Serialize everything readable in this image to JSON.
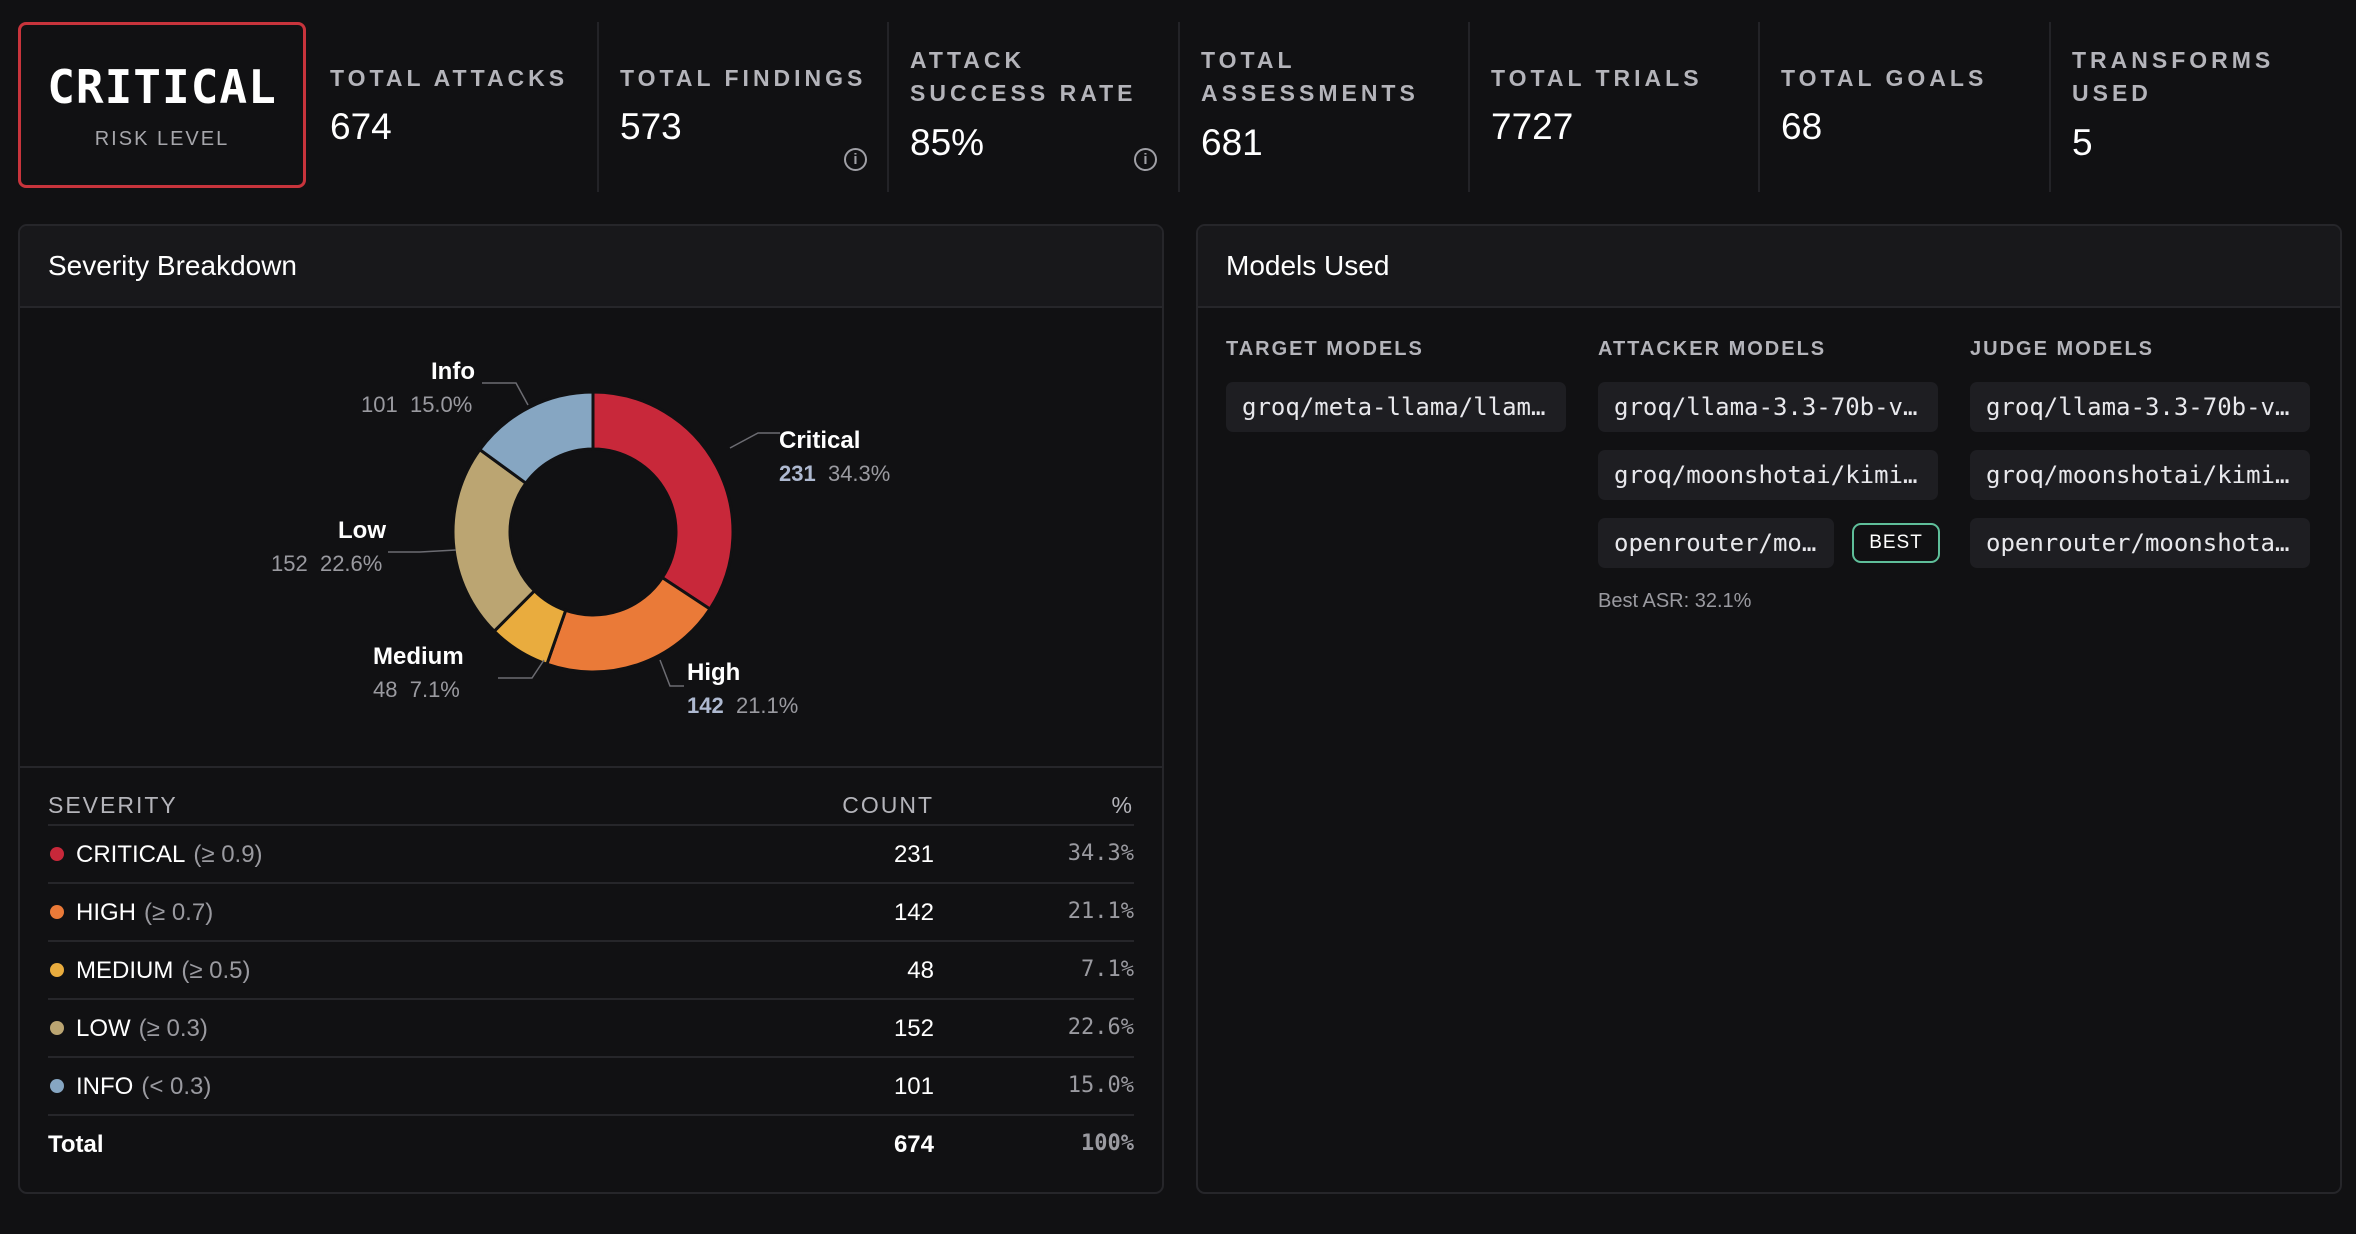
{
  "risk": {
    "value": "CRITICAL",
    "label": "RISK LEVEL",
    "color": "#c8343c"
  },
  "stats": [
    {
      "label": "TOTAL ATTACKS",
      "value": "674"
    },
    {
      "label": "TOTAL FINDINGS",
      "value": "573",
      "info": true
    },
    {
      "label": "ATTACK SUCCESS RATE",
      "label_lines": [
        "ATTACK",
        "SUCCESS RATE"
      ],
      "value": "85%",
      "info": true
    },
    {
      "label": "TOTAL ASSESSMENTS",
      "label_lines": [
        "TOTAL",
        "ASSESSMENTS"
      ],
      "value": "681"
    },
    {
      "label": "TOTAL TRIALS",
      "value": "7727"
    },
    {
      "label": "TOTAL GOALS",
      "value": "68"
    },
    {
      "label": "TRANSFORMS USED",
      "label_lines": [
        "TRANSFORMS",
        "USED"
      ],
      "value": "5"
    }
  ],
  "severity": {
    "title": "Severity Breakdown",
    "columns": [
      "SEVERITY",
      "COUNT",
      "%"
    ],
    "rows": [
      {
        "name": "CRITICAL",
        "threshold": "(≥ 0.9)",
        "count": "231",
        "pct": "34.3%",
        "color": "#c8283a"
      },
      {
        "name": "HIGH",
        "threshold": "(≥ 0.7)",
        "count": "142",
        "pct": "21.1%",
        "color": "#ea7a38"
      },
      {
        "name": "MEDIUM",
        "threshold": "(≥ 0.5)",
        "count": "48",
        "pct": "7.1%",
        "color": "#e9ac3e"
      },
      {
        "name": "LOW",
        "threshold": "(≥ 0.3)",
        "count": "152",
        "pct": "22.6%",
        "color": "#bba572"
      },
      {
        "name": "INFO",
        "threshold": "(< 0.3)",
        "count": "101",
        "pct": "15.0%",
        "color": "#86a6c2"
      }
    ],
    "total": {
      "name": "Total",
      "count": "674",
      "pct": "100%"
    }
  },
  "chart_data": {
    "type": "pie",
    "donut": true,
    "categories": [
      "Critical",
      "High",
      "Medium",
      "Low",
      "Info"
    ],
    "values": [
      231,
      142,
      48,
      152,
      101
    ],
    "percent_labels": [
      "34.3%",
      "21.1%",
      "7.1%",
      "22.6%",
      "15.0%"
    ],
    "colors": [
      "#c8283a",
      "#ea7a38",
      "#e9ac3e",
      "#bba572",
      "#86a6c2"
    ]
  },
  "models": {
    "title": "Models Used",
    "target": {
      "title": "TARGET MODELS",
      "items": [
        "groq/meta-llama/llam…"
      ]
    },
    "attacker": {
      "title": "ATTACKER MODELS",
      "items": [
        "groq/llama-3.3-70b-v…",
        "groq/moonshotai/kimi…",
        "openrouter/mo…"
      ],
      "best_badge": "BEST",
      "best_asr": "Best ASR: 32.1%"
    },
    "judge": {
      "title": "JUDGE MODELS",
      "items": [
        "groq/llama-3.3-70b-v…",
        "groq/moonshotai/kimi…",
        "openrouter/moonshota…"
      ]
    }
  }
}
